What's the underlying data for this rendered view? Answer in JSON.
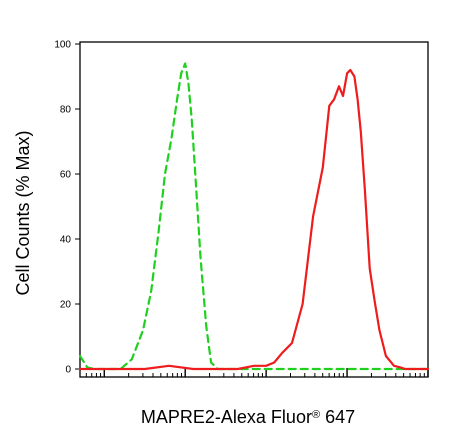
{
  "chart_data": {
    "type": "line",
    "ylabel": "Cell Counts (% Max)",
    "xlabel": {
      "main": "MAPRE2-Alexa Fluor",
      "superscript": "®",
      "suffix": " 647"
    },
    "yticks": [
      0,
      20,
      40,
      60,
      80,
      100
    ],
    "ylim": [
      0,
      100
    ],
    "xscale": "log",
    "xlim": [
      -1.3,
      3.0
    ],
    "grid": false,
    "series": [
      {
        "color": "#1fd01f",
        "style": "dashed",
        "x": [
          -1.3,
          -1.21,
          -1.12,
          -1.02,
          -0.91,
          -0.8,
          -0.66,
          -0.52,
          -0.42,
          -0.33,
          -0.25,
          -0.17,
          -0.1,
          -0.05,
          0.0,
          0.04,
          0.08,
          0.13,
          0.19,
          0.26,
          0.32,
          0.4,
          0.48,
          0.58,
          0.75,
          1.0,
          1.4,
          2.0,
          2.5,
          3.0
        ],
        "y": [
          4,
          0.5,
          0,
          0,
          0,
          0,
          3,
          12,
          24,
          42,
          60,
          71,
          83,
          91,
          94,
          88,
          77,
          58,
          34,
          13,
          2,
          0,
          0,
          0,
          0,
          0,
          0,
          0,
          0,
          0
        ]
      },
      {
        "color": "#ee1c1c",
        "style": "solid",
        "x": [
          -1.3,
          -0.8,
          -0.5,
          -0.2,
          0.1,
          0.4,
          0.65,
          0.85,
          1.0,
          1.1,
          1.2,
          1.32,
          1.45,
          1.58,
          1.7,
          1.78,
          1.84,
          1.9,
          1.95,
          2.0,
          2.04,
          2.09,
          2.13,
          2.17,
          2.22,
          2.28,
          2.34,
          2.4,
          2.48,
          2.58,
          2.66,
          2.72,
          2.8,
          2.9,
          3.0
        ],
        "y": [
          0,
          0,
          0,
          1,
          0,
          0,
          0,
          1,
          1,
          2,
          5,
          8,
          20,
          47,
          62,
          81,
          83,
          87,
          84,
          91,
          92,
          90,
          83,
          73,
          55,
          31,
          21,
          12,
          4,
          1,
          0.5,
          0,
          0,
          0,
          0
        ]
      }
    ]
  }
}
